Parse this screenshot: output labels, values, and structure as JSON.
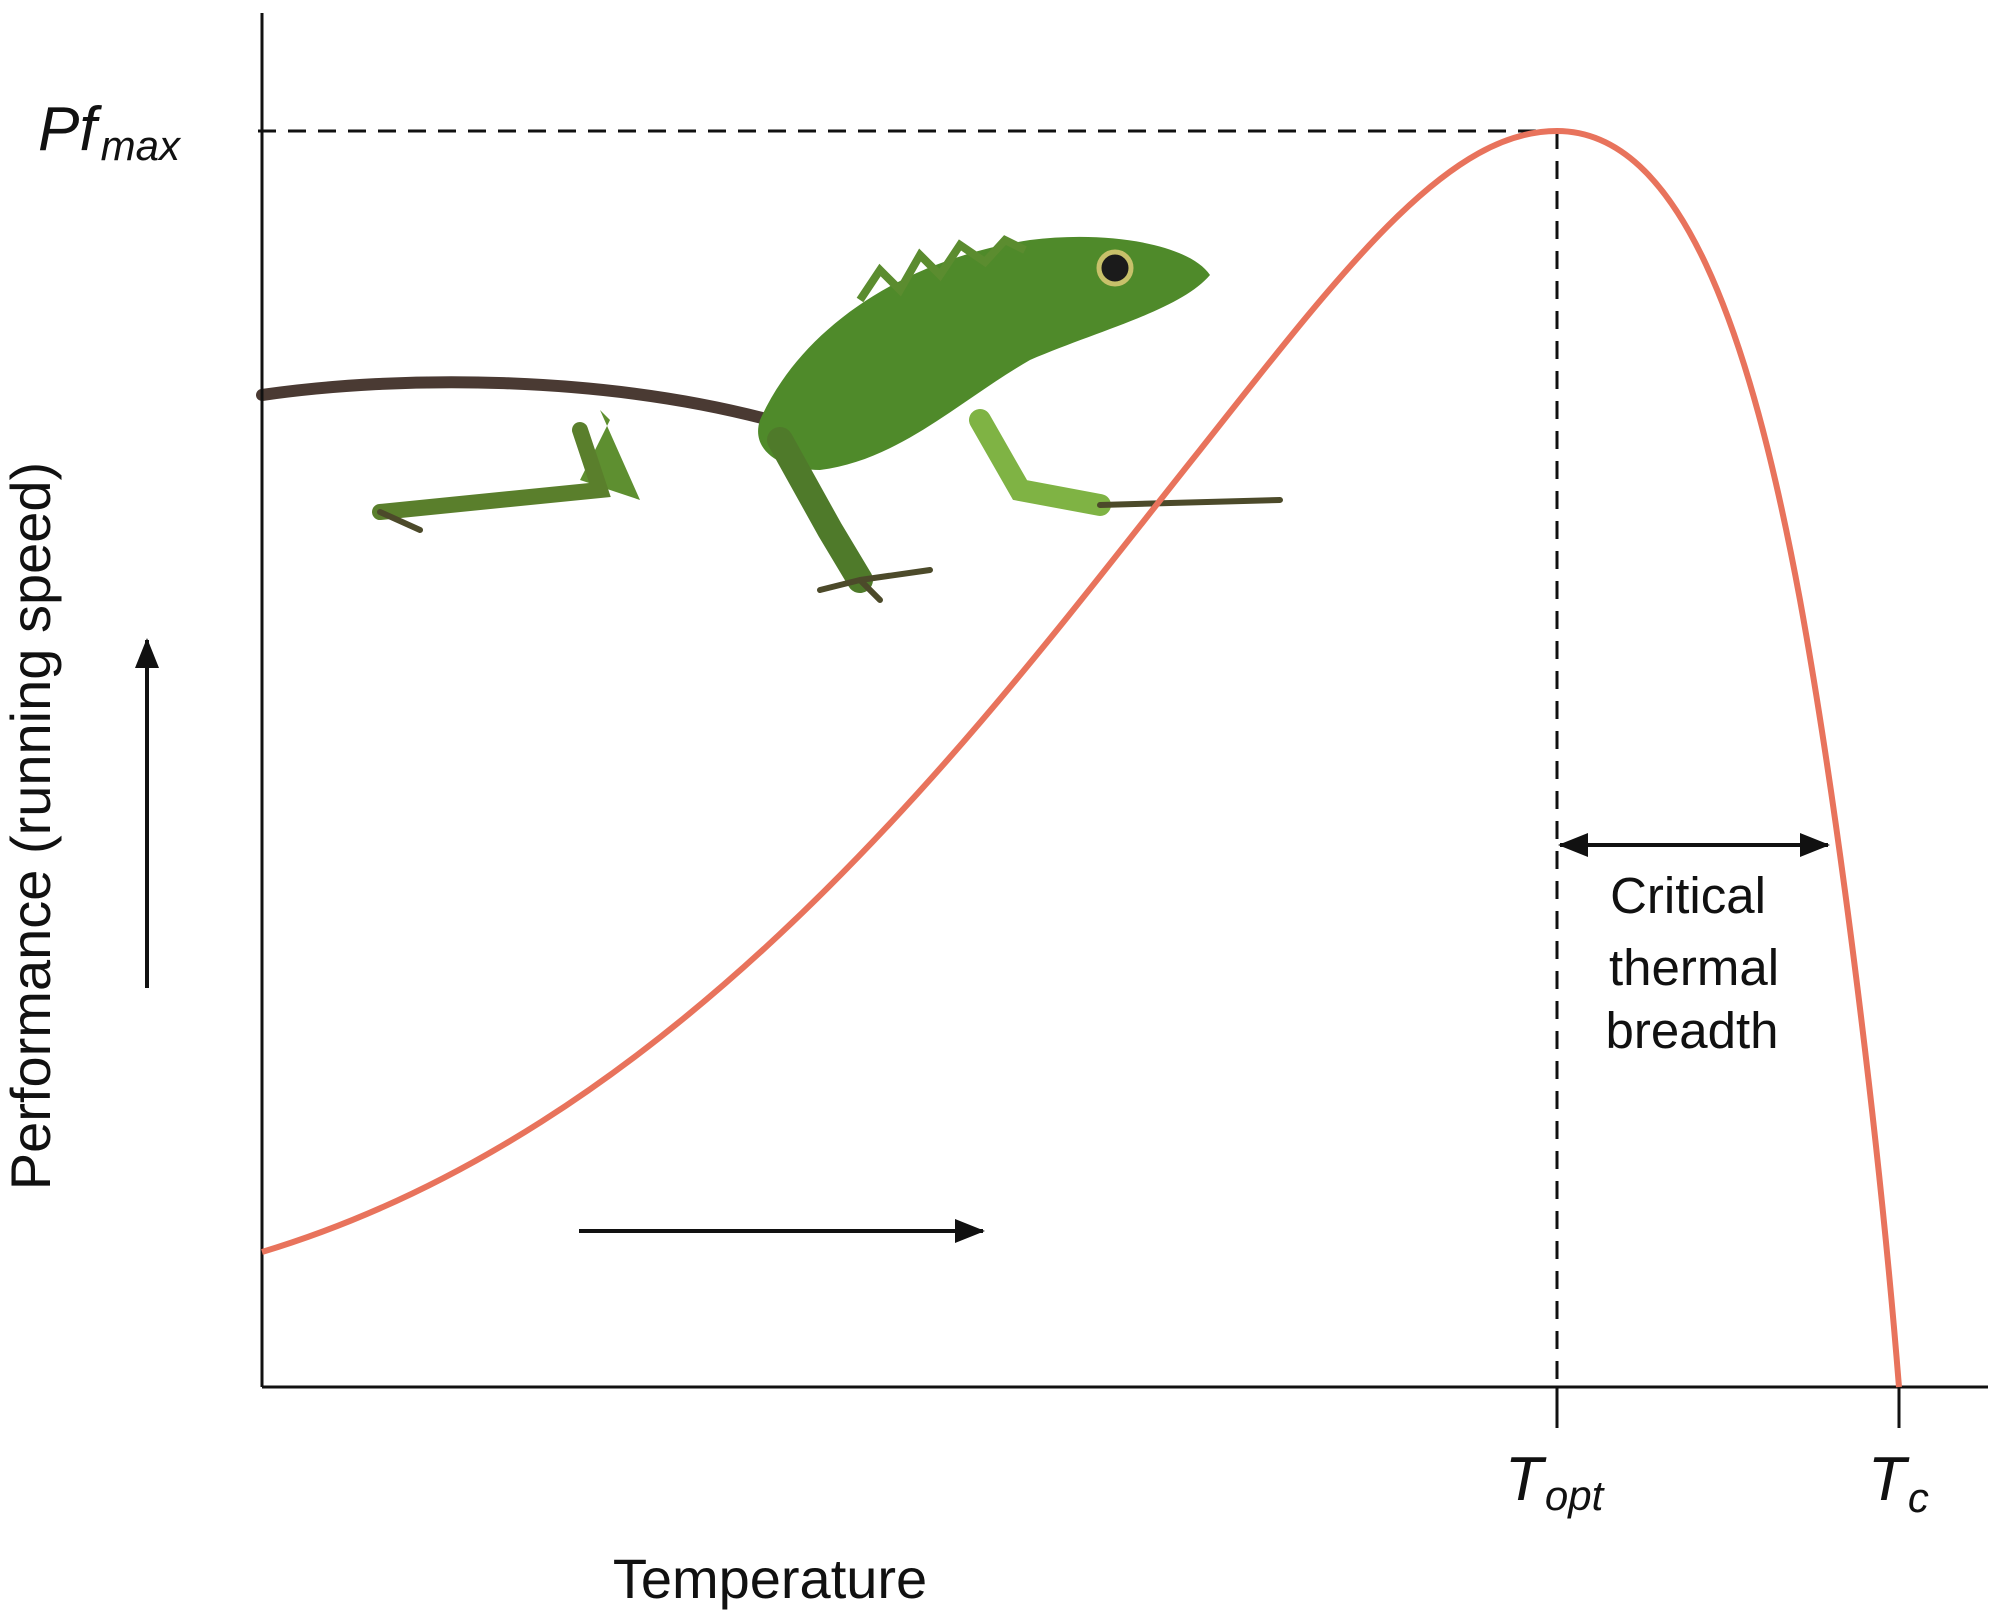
{
  "labels": {
    "pf_max": {
      "main": "Pf",
      "sub": "max"
    },
    "t_opt": {
      "main": "T",
      "sub": "opt"
    },
    "t_c": {
      "main": "T",
      "sub": "c"
    }
  },
  "annotation": {
    "lines": [
      "Critical",
      "thermal",
      "breadth"
    ]
  },
  "axes": {
    "y_label": "Performance (running speed)",
    "x_label": "Temperature"
  }
}
